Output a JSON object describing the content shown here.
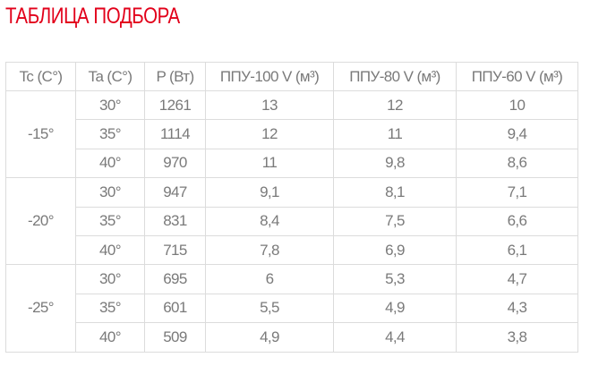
{
  "title": "ТАБЛИЦА ПОДБОРА",
  "headers": [
    "Tc (C°)",
    "Ta (C°)",
    "P (Вт)",
    "ППУ-100 V (м³)",
    "ППУ-80 V (м³)",
    "ППУ-60 V (м³)"
  ],
  "groups": [
    {
      "tc": "-15°",
      "rows": [
        [
          "30°",
          "1261",
          "13",
          "12",
          "10"
        ],
        [
          "35°",
          "1114",
          "12",
          "11",
          "9,4"
        ],
        [
          "40°",
          "970",
          "11",
          "9,8",
          "8,6"
        ]
      ]
    },
    {
      "tc": "-20°",
      "rows": [
        [
          "30°",
          "947",
          "9,1",
          "8,1",
          "7,1"
        ],
        [
          "35°",
          "831",
          "8,4",
          "7,5",
          "6,6"
        ],
        [
          "40°",
          "715",
          "7,8",
          "6,9",
          "6,1"
        ]
      ]
    },
    {
      "tc": "-25°",
      "rows": [
        [
          "30°",
          "695",
          "6",
          "5,3",
          "4,7"
        ],
        [
          "35°",
          "601",
          "5,5",
          "4,9",
          "4,3"
        ],
        [
          "40°",
          "509",
          "4,9",
          "4,4",
          "3,8"
        ]
      ]
    }
  ],
  "colors": {
    "title": "#e2001a",
    "text": "#7a7a7a",
    "border": "#dcdcdc"
  }
}
